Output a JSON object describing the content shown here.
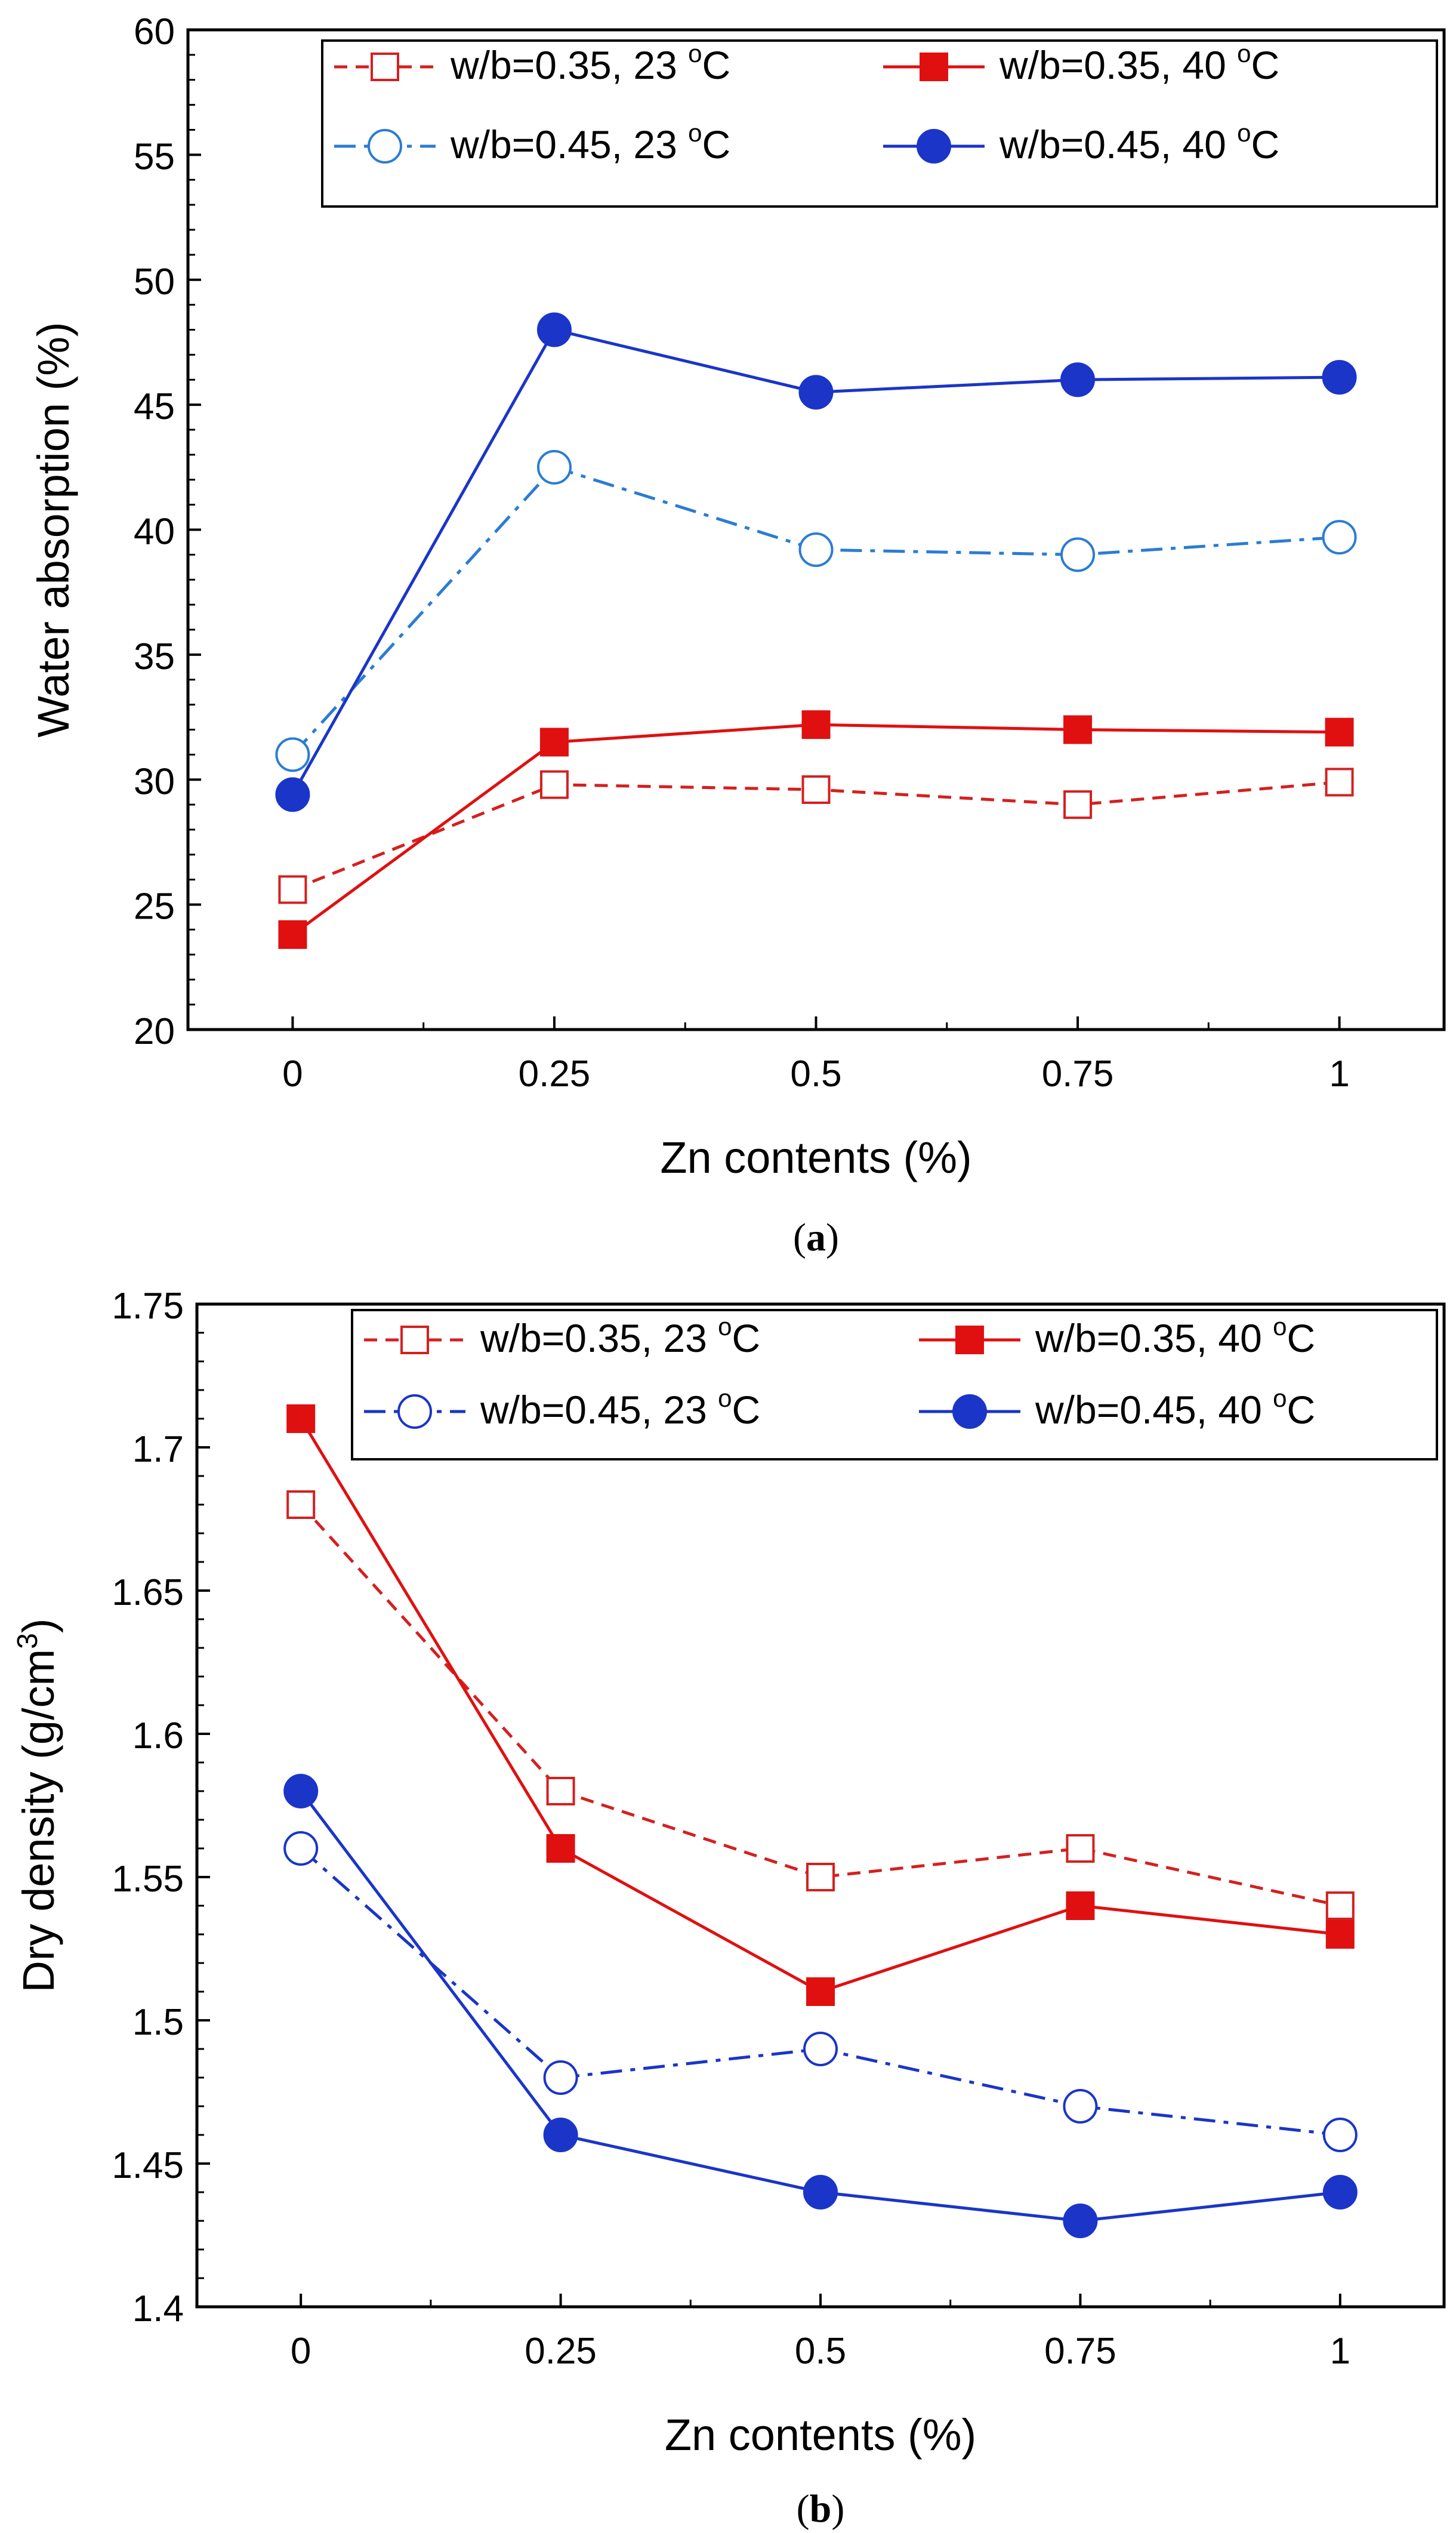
{
  "chart_data": [
    {
      "type": "line",
      "panel_label": "a",
      "xlabel": "Zn contents (%)",
      "ylabel": "Water absorption (%)",
      "x": [
        0,
        0.25,
        0.5,
        0.75,
        1
      ],
      "xticks": [
        "0",
        "0.25",
        "0.5",
        "0.75",
        "1"
      ],
      "xlim": [
        -0.1,
        1.1
      ],
      "ylim": [
        20,
        60
      ],
      "yticks": [
        "20",
        "25",
        "30",
        "35",
        "40",
        "45",
        "50",
        "55",
        "60"
      ],
      "ytick_values": [
        20,
        25,
        30,
        35,
        40,
        45,
        50,
        55,
        60
      ],
      "legend_position": "top-right",
      "series": [
        {
          "name": "w/b=0.35, 23 °C",
          "label_main": "w/b=0.35, 23 ",
          "label_sup": "o",
          "label_unit": "C",
          "values": [
            25.6,
            29.8,
            29.6,
            29.0,
            29.9
          ],
          "color": "#d42020",
          "marker": "open-square",
          "line": "dashed"
        },
        {
          "name": "w/b=0.35, 40 °C",
          "label_main": "w/b=0.35, 40 ",
          "label_sup": "o",
          "label_unit": "C",
          "values": [
            23.8,
            31.5,
            32.2,
            32.0,
            31.9
          ],
          "color": "#e01010",
          "marker": "filled-square",
          "line": "solid"
        },
        {
          "name": "w/b=0.45, 23 °C",
          "label_main": "w/b=0.45, 23 ",
          "label_sup": "o",
          "label_unit": "C",
          "values": [
            31.0,
            42.5,
            39.2,
            39.0,
            39.7
          ],
          "color": "#2b7cd3",
          "marker": "open-circle",
          "line": "dashdot"
        },
        {
          "name": "w/b=0.45, 40 °C",
          "label_main": "w/b=0.45, 40 ",
          "label_sup": "o",
          "label_unit": "C",
          "values": [
            29.4,
            48.0,
            45.5,
            46.0,
            46.1
          ],
          "color": "#1a35c8",
          "marker": "filled-circle",
          "line": "solid"
        }
      ]
    },
    {
      "type": "line",
      "panel_label": "b",
      "xlabel": "Zn contents (%)",
      "ylabel": "Dry density (g/cm",
      "ylabel_sup": "3",
      "ylabel_end": ")",
      "x": [
        0,
        0.25,
        0.5,
        0.75,
        1
      ],
      "xticks": [
        "0",
        "0.25",
        "0.5",
        "0.75",
        "1"
      ],
      "xlim": [
        -0.1,
        1.1
      ],
      "ylim": [
        1.4,
        1.75
      ],
      "yticks": [
        "1.4",
        "1.45",
        "1.5",
        "1.55",
        "1.6",
        "1.65",
        "1.7",
        "1.75"
      ],
      "ytick_values": [
        1.4,
        1.45,
        1.5,
        1.55,
        1.6,
        1.65,
        1.7,
        1.75
      ],
      "legend_position": "top-right",
      "series": [
        {
          "name": "w/b=0.35, 23 °C",
          "label_main": "w/b=0.35, 23 ",
          "label_sup": "o",
          "label_unit": "C",
          "values": [
            1.68,
            1.58,
            1.55,
            1.56,
            1.54
          ],
          "color": "#d42020",
          "marker": "open-square",
          "line": "dashed"
        },
        {
          "name": "w/b=0.35, 40 °C",
          "label_main": "w/b=0.35, 40 ",
          "label_sup": "o",
          "label_unit": "C",
          "values": [
            1.71,
            1.56,
            1.51,
            1.54,
            1.53
          ],
          "color": "#e01010",
          "marker": "filled-square",
          "line": "solid"
        },
        {
          "name": "w/b=0.45, 23 °C",
          "label_main": "w/b=0.45, 23 ",
          "label_sup": "o",
          "label_unit": "C",
          "values": [
            1.56,
            1.48,
            1.49,
            1.47,
            1.46
          ],
          "color": "#1a35c8",
          "marker": "open-circle",
          "line": "dashdot"
        },
        {
          "name": "w/b=0.45, 40 °C",
          "label_main": "w/b=0.45, 40 ",
          "label_sup": "o",
          "label_unit": "C",
          "values": [
            1.58,
            1.46,
            1.44,
            1.43,
            1.44
          ],
          "color": "#1a35c8",
          "marker": "filled-circle",
          "line": "solid"
        }
      ]
    }
  ]
}
